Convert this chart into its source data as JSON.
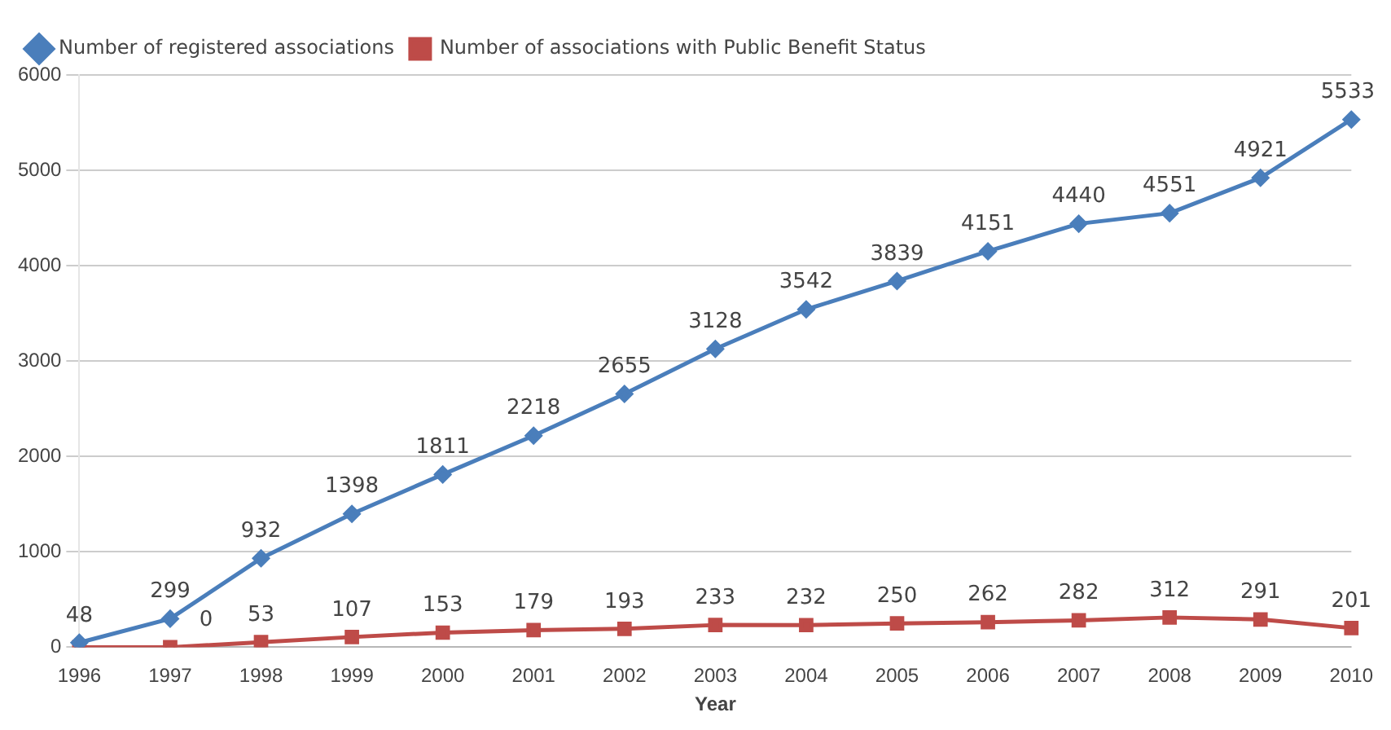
{
  "chart_data": {
    "type": "line",
    "xlabel": "Year",
    "categories": [
      "1996",
      "1997",
      "1998",
      "1999",
      "2000",
      "2001",
      "2002",
      "2003",
      "2004",
      "2005",
      "2006",
      "2007",
      "2008",
      "2009",
      "2010"
    ],
    "series": [
      {
        "name": "Number of registered associations",
        "color": "#4a7ebb",
        "marker": "diamond",
        "values": [
          48,
          299,
          932,
          1398,
          1811,
          2218,
          2655,
          3128,
          3542,
          3839,
          4151,
          4440,
          4551,
          4921,
          5533
        ],
        "value_labels": [
          "48",
          "299",
          "932",
          "1398",
          "1811",
          "2218",
          "2655",
          "3128",
          "3542",
          "3839",
          "4151",
          "4440",
          "4551",
          "4921",
          "5533"
        ]
      },
      {
        "name": "Number of associations with Public Benefit Status",
        "color": "#be4b48",
        "marker": "square",
        "values": [
          0,
          0,
          53,
          107,
          153,
          179,
          193,
          233,
          232,
          250,
          262,
          282,
          312,
          291,
          201
        ],
        "value_labels": [
          null,
          "0",
          "53",
          "107",
          "153",
          "179",
          "193",
          "233",
          "232",
          "250",
          "262",
          "282",
          "312",
          "291",
          "201"
        ]
      }
    ],
    "ylim": [
      0,
      6000
    ],
    "yticks": [
      0,
      1000,
      2000,
      3000,
      4000,
      5000,
      6000
    ],
    "grid": "y",
    "legend": "top left",
    "line_style": "solid"
  }
}
